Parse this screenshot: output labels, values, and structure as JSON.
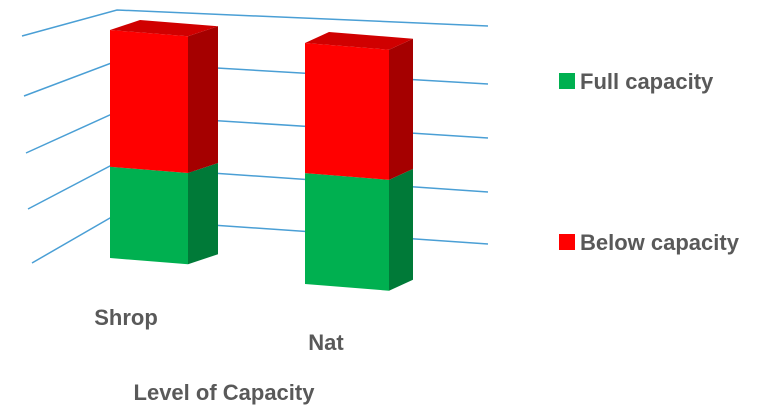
{
  "chart_data": {
    "type": "bar",
    "stacked": true,
    "three_d": true,
    "title": "",
    "xlabel": "Level of Capacity",
    "ylabel": "",
    "categories": [
      "Shrop",
      "Nat"
    ],
    "series": [
      {
        "name": "Full capacity",
        "values": [
          0.4,
          0.46
        ],
        "color": "#00B050"
      },
      {
        "name": "Below capacity",
        "values": [
          0.6,
          0.54
        ],
        "color": "#FF0000"
      }
    ],
    "ylim": [
      0,
      1
    ],
    "grid": true,
    "legend_position": "right"
  }
}
